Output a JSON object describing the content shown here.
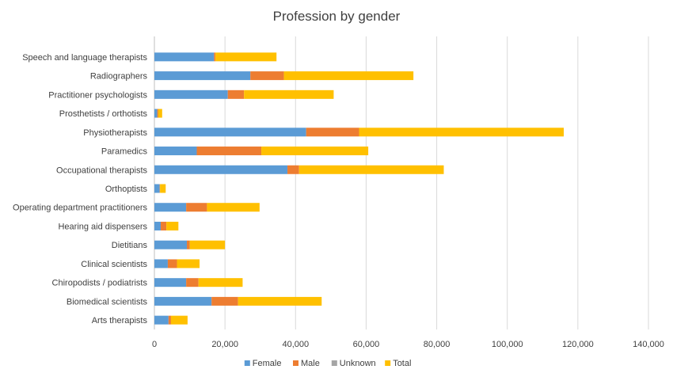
{
  "chart_data": {
    "type": "bar",
    "orientation": "horizontal",
    "stacked": true,
    "title": "Profession by gender",
    "categories": [
      "Speech and language therapists",
      "Radiographers",
      "Practitioner psychologists",
      "Prosthetists / orthotists",
      "Physiotherapists",
      "Paramedics",
      "Occupational therapists",
      "Orthoptists",
      "Operating department practitioners",
      "Hearing aid dispensers",
      "Dietitians",
      "Clinical scientists",
      "Chiropodists / podiatrists",
      "Biomedical scientists",
      "Arts therapists"
    ],
    "series": [
      {
        "name": "Female",
        "color": "#5B9BD5",
        "values": [
          16900,
          27200,
          20800,
          800,
          43000,
          12000,
          37700,
          1500,
          9000,
          1800,
          9200,
          3800,
          9000,
          16200,
          4000
        ]
      },
      {
        "name": "Male",
        "color": "#ED7D31",
        "values": [
          400,
          9500,
          4600,
          300,
          15000,
          18300,
          3300,
          100,
          5900,
          1600,
          800,
          2600,
          3500,
          7500,
          700
        ]
      },
      {
        "name": "Unknown",
        "color": "#A5A5A5",
        "values": [
          0,
          0,
          0,
          0,
          0,
          0,
          0,
          0,
          0,
          0,
          0,
          0,
          0,
          0,
          0
        ]
      },
      {
        "name": "Total",
        "color": "#FFC000",
        "values": [
          17300,
          36700,
          25400,
          1100,
          58000,
          30300,
          41000,
          1600,
          14900,
          3400,
          10000,
          6400,
          12500,
          23700,
          4700
        ]
      }
    ],
    "xlim": [
      0,
      140000
    ],
    "xticks": [
      "0",
      "20,000",
      "40,000",
      "60,000",
      "80,000",
      "100,000",
      "120,000",
      "140,000"
    ],
    "grid": true,
    "legend_position": "bottom"
  }
}
